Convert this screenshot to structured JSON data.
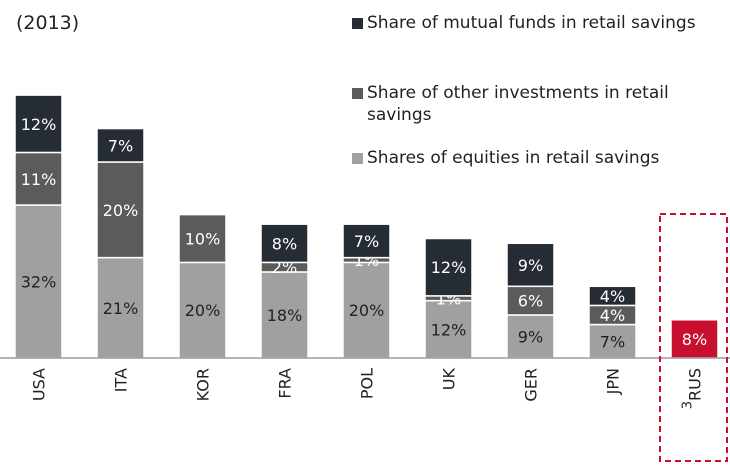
{
  "chart_data": {
    "type": "stacked_bar",
    "title": "(2013)",
    "categories": [
      "USA",
      "ITA",
      "KOR",
      "FRA",
      "POL",
      "UK",
      "GER",
      "JPN",
      "RUS"
    ],
    "category_notes": [
      null,
      null,
      null,
      null,
      null,
      null,
      null,
      null,
      "3"
    ],
    "series": [
      {
        "name": "Shares of equities in retail savings",
        "color": "#a0a0a0",
        "label_color": "#222222",
        "values": [
          32,
          21,
          20,
          18,
          20,
          12,
          9,
          7,
          8
        ],
        "value_labels": [
          "32%",
          "21%",
          "20%",
          "18%",
          "20%",
          "12%",
          "9%",
          "7%",
          "8%"
        ]
      },
      {
        "name": "Share of other investments in retail savings",
        "color": "#5b5b5b",
        "label_color": "#ffffff",
        "values": [
          11,
          20,
          10,
          2,
          1,
          1,
          6,
          4,
          null
        ],
        "value_labels": [
          "11%",
          "20%",
          "10%",
          "2%",
          "1%",
          "1%",
          "6%",
          "4%",
          null
        ]
      },
      {
        "name": "Share of mutual funds in retail savings",
        "color": "#262c33",
        "label_color": "#ffffff",
        "values": [
          12,
          7,
          null,
          8,
          7,
          12,
          9,
          4,
          null
        ],
        "value_labels": [
          "12%",
          "7%",
          null,
          "8%",
          "7%",
          "12%",
          "9%",
          "4%",
          null
        ]
      }
    ],
    "highlight": {
      "index": 8,
      "color": "#c8102e",
      "label_color": "#ffffff"
    },
    "legend_order": [
      2,
      1,
      0
    ]
  }
}
